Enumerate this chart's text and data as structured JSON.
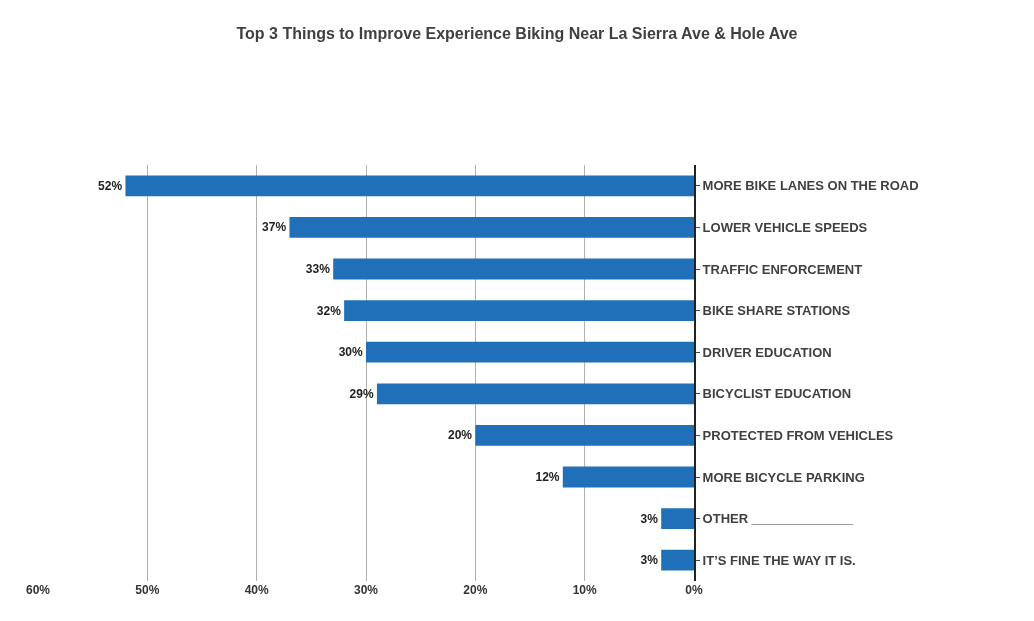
{
  "chart_data": {
    "type": "bar",
    "orientation": "horizontal",
    "title": "Top 3 Things to Improve Experience Biking Near La Sierra Ave & Hole Ave",
    "categories": [
      "MORE BIKE LANES ON THE ROAD",
      "LOWER VEHICLE SPEEDS",
      "TRAFFIC ENFORCEMENT",
      "BIKE SHARE STATIONS",
      "DRIVER EDUCATION",
      "BICYCLIST EDUCATION",
      "PROTECTED FROM VEHICLES",
      "MORE BICYCLE PARKING",
      "OTHER ______________",
      "IT’S FINE THE WAY IT IS."
    ],
    "values": [
      52,
      37,
      33,
      32,
      30,
      29,
      20,
      12,
      3,
      3
    ],
    "value_labels": [
      "52%",
      "37%",
      "33%",
      "32%",
      "30%",
      "29%",
      "20%",
      "12%",
      "3%",
      "3%"
    ],
    "color": "#1f70b8",
    "xlim": [
      60,
      0
    ],
    "xticks": [
      {
        "value": 60,
        "label": "60%"
      },
      {
        "value": 50,
        "label": "50%"
      },
      {
        "value": 40,
        "label": "40%"
      },
      {
        "value": 30,
        "label": "30%"
      },
      {
        "value": 20,
        "label": "20%"
      },
      {
        "value": 10,
        "label": "10%"
      },
      {
        "value": 0,
        "label": "0%"
      }
    ],
    "grid": "x",
    "legend": false
  }
}
